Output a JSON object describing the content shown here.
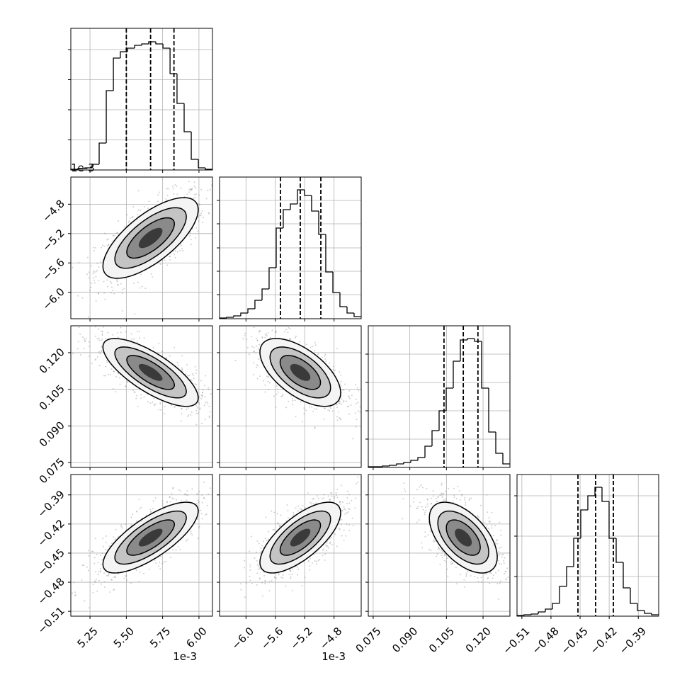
{
  "chart_data": {
    "type": "corner",
    "grid": true,
    "params": [
      {
        "lim": [
          5.118,
          6.093
        ],
        "ticks": [
          {
            "value": 5.25,
            "label": "5.25"
          },
          {
            "value": 5.5,
            "label": "5.50"
          },
          {
            "value": 5.75,
            "label": "5.75"
          },
          {
            "value": 6.0,
            "label": "6.00"
          }
        ],
        "offset_label": "1e-3",
        "quantiles": [
          5.5,
          5.667,
          5.828
        ],
        "hist": {
          "bins": [
            5.118,
            5.167,
            5.215,
            5.264,
            5.313,
            5.362,
            5.411,
            5.459,
            5.508,
            5.557,
            5.606,
            5.654,
            5.703,
            5.752,
            5.801,
            5.849,
            5.898,
            5.947,
            5.996,
            6.044,
            6.093
          ],
          "counts": [
            1,
            2,
            3,
            8,
            38,
            112,
            158,
            167,
            172,
            176,
            178,
            181,
            178,
            172,
            136,
            94,
            54,
            15,
            3,
            1
          ],
          "ylim": [
            0,
            200
          ],
          "yticks": [
            42.5,
            85,
            127.5,
            170
          ]
        }
      },
      {
        "lim": [
          -6.36,
          -4.43
        ],
        "ticks": [
          {
            "value": -6.0,
            "label": "−6.0"
          },
          {
            "value": -5.6,
            "label": "−5.6"
          },
          {
            "value": -5.2,
            "label": "−5.2"
          },
          {
            "value": -4.8,
            "label": "−4.8"
          }
        ],
        "offset_label": "1e-3",
        "quantiles": [
          -5.53,
          -5.26,
          -4.98
        ],
        "hist": {
          "bins": [
            -6.36,
            -6.264,
            -6.167,
            -6.071,
            -5.974,
            -5.878,
            -5.781,
            -5.685,
            -5.588,
            -5.492,
            -5.395,
            -5.299,
            -5.202,
            -5.106,
            -5.009,
            -4.913,
            -4.816,
            -4.72,
            -4.623,
            -4.527,
            -4.43
          ],
          "counts": [
            1,
            2,
            4,
            8,
            14,
            26,
            42,
            72,
            128,
            154,
            162,
            182,
            174,
            152,
            119,
            66,
            37,
            17,
            8,
            3
          ],
          "ylim": [
            0,
            200
          ],
          "yticks": [
            34,
            67,
            100,
            134,
            167
          ]
        }
      },
      {
        "lim": [
          0.073,
          0.131
        ],
        "ticks": [
          {
            "value": 0.075,
            "label": "0.075"
          },
          {
            "value": 0.09,
            "label": "0.090"
          },
          {
            "value": 0.105,
            "label": "0.105"
          },
          {
            "value": 0.12,
            "label": "0.120"
          }
        ],
        "quantiles": [
          0.104,
          0.1119,
          0.1179
        ],
        "hist": {
          "bins": [
            0.073,
            0.0759,
            0.0788,
            0.0817,
            0.0846,
            0.0875,
            0.0904,
            0.0933,
            0.0962,
            0.0991,
            0.102,
            0.1049,
            0.1078,
            0.1107,
            0.1136,
            0.1165,
            0.1194,
            0.1223,
            0.1252,
            0.1281,
            0.131
          ],
          "counts": [
            1,
            1,
            2,
            3,
            5,
            7,
            10,
            14,
            30,
            52,
            80,
            112,
            150,
            180,
            182,
            178,
            112,
            50,
            20,
            5
          ],
          "ylim": [
            0,
            200
          ],
          "yticks": [
            40,
            80,
            120,
            160
          ]
        }
      },
      {
        "lim": [
          -0.515,
          -0.369
        ],
        "ticks": [
          {
            "value": -0.51,
            "label": "−0.51"
          },
          {
            "value": -0.48,
            "label": "−0.48"
          },
          {
            "value": -0.45,
            "label": "−0.45"
          },
          {
            "value": -0.42,
            "label": "−0.42"
          },
          {
            "value": -0.39,
            "label": "−0.39"
          }
        ],
        "quantiles": [
          -0.4522,
          -0.434,
          -0.4157
        ],
        "hist": {
          "bins": [
            -0.515,
            -0.5077,
            -0.5004,
            -0.4931,
            -0.4858,
            -0.4785,
            -0.4712,
            -0.4639,
            -0.4566,
            -0.4493,
            -0.442,
            -0.4347,
            -0.4274,
            -0.4201,
            -0.4128,
            -0.4055,
            -0.3982,
            -0.3909,
            -0.3836,
            -0.3763,
            -0.369
          ],
          "counts": [
            1,
            2,
            3,
            6,
            10,
            18,
            42,
            70,
            110,
            150,
            170,
            182,
            162,
            110,
            76,
            40,
            18,
            8,
            4,
            2
          ],
          "ylim": [
            0,
            200
          ],
          "yticks": [
            56,
            113,
            170
          ]
        }
      }
    ],
    "correlations": [
      [
        0.7
      ],
      [
        -0.75,
        -0.6
      ],
      [
        0.75,
        0.7,
        -0.55
      ]
    ]
  }
}
